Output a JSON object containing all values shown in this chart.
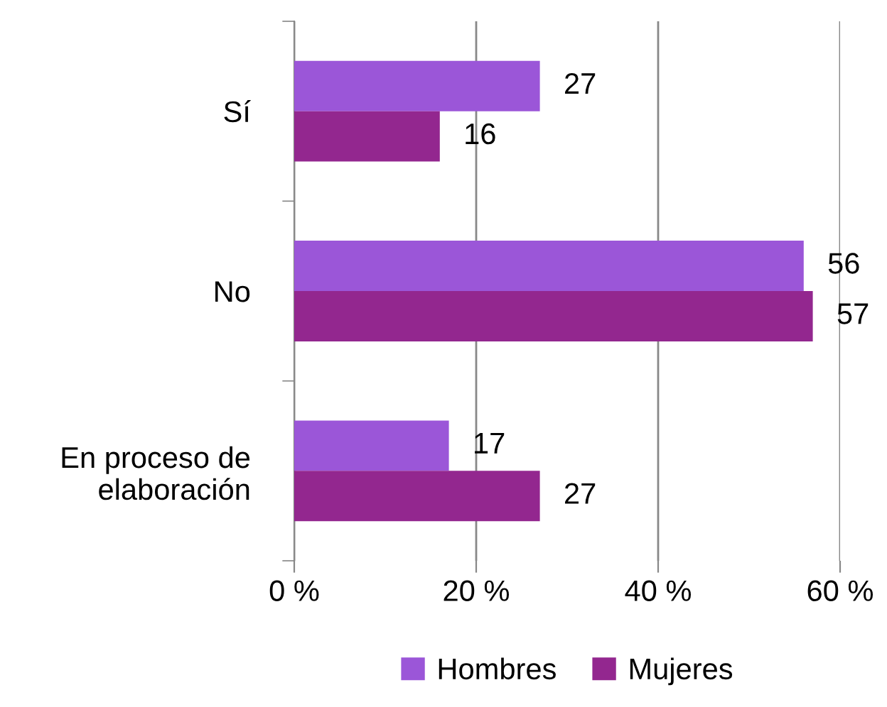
{
  "chart_data": {
    "type": "bar",
    "orientation": "horizontal",
    "categories": [
      "Sí",
      "No",
      "En proceso de\nelaboración"
    ],
    "series": [
      {
        "name": "Hombres",
        "color": "#9b56d8",
        "values": [
          27,
          56,
          17
        ]
      },
      {
        "name": "Mujeres",
        "color": "#93278f",
        "values": [
          16,
          57,
          27
        ]
      }
    ],
    "xlim": [
      0,
      60
    ],
    "xticks": [
      {
        "value": 0,
        "label": "0 %"
      },
      {
        "value": 20,
        "label": "20 %"
      },
      {
        "value": 40,
        "label": "40 %"
      },
      {
        "value": 60,
        "label": "60 %"
      }
    ],
    "grid": "x",
    "legend": "bottom",
    "data_labels": true
  }
}
